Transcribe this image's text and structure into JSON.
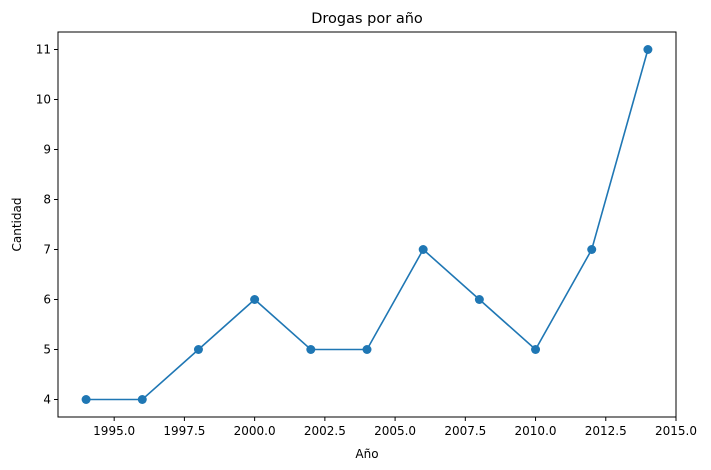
{
  "chart_data": {
    "type": "line",
    "title": "Drogas por año",
    "xlabel": "Año",
    "ylabel": "Cantidad",
    "x": [
      1994,
      1996,
      1998,
      2000,
      2002,
      2004,
      2006,
      2008,
      2010,
      2012,
      2014
    ],
    "series": [
      {
        "values": [
          4,
          4,
          5,
          6,
          5,
          5,
          7,
          6,
          5,
          7,
          11
        ]
      }
    ],
    "xlim": [
      1993.0,
      2015.0
    ],
    "ylim": [
      3.65,
      11.35
    ],
    "xticks": [
      1995.0,
      1997.5,
      2000.0,
      2002.5,
      2005.0,
      2007.5,
      2010.0,
      2012.5,
      2015.0
    ],
    "xtick_labels": [
      "1995.0",
      "1997.5",
      "2000.0",
      "2002.5",
      "2005.0",
      "2007.5",
      "2010.0",
      "2012.5",
      "2015.0"
    ],
    "yticks": [
      4,
      5,
      6,
      7,
      8,
      9,
      10,
      11
    ],
    "ytick_labels": [
      "4",
      "5",
      "6",
      "7",
      "8",
      "9",
      "10",
      "11"
    ],
    "grid": false,
    "marker": "circle",
    "color": "#1f77b4"
  }
}
